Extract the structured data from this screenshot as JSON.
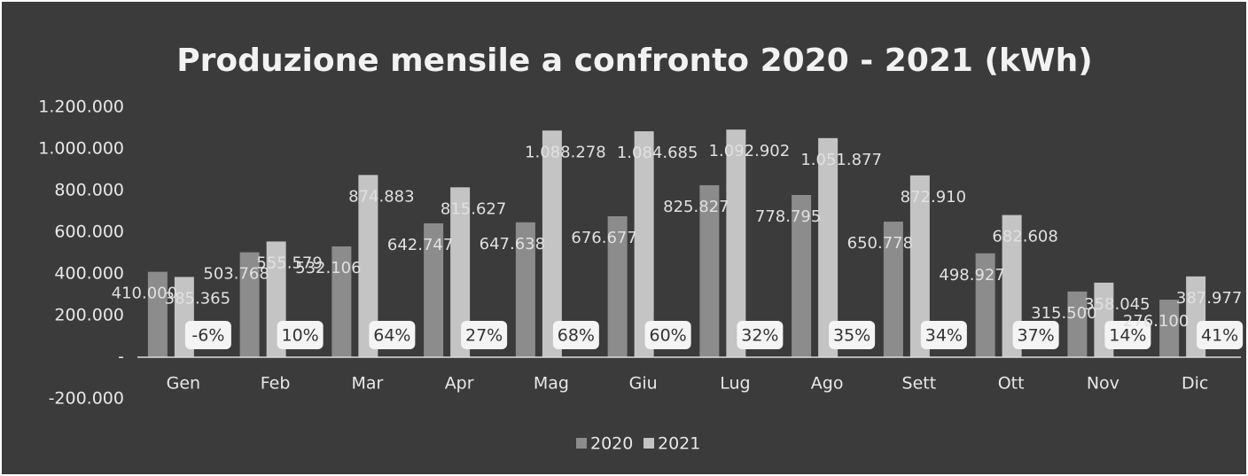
{
  "chart_data": {
    "type": "bar",
    "title": "Produzione mensile a confronto 2020 - 2021 (kWh)",
    "categories": [
      "Gen",
      "Feb",
      "Mar",
      "Apr",
      "Mag",
      "Giu",
      "Lug",
      "Ago",
      "Sett",
      "Ott",
      "Nov",
      "Dic"
    ],
    "series": [
      {
        "name": "2020",
        "color": "#8c8c8c",
        "values": [
          410000,
          503768,
          532106,
          642747,
          647638,
          676677,
          825827,
          778795,
          650778,
          498927,
          315500,
          276100
        ],
        "value_labels": [
          "410.000",
          "503.768",
          "532.106",
          "642.747",
          "647.638",
          "676.677",
          "825.827",
          "778.795",
          "650.778",
          "498.927",
          "315.500",
          "276.100"
        ]
      },
      {
        "name": "2021",
        "color": "#c4c4c4",
        "values": [
          385365,
          555579,
          874883,
          815627,
          1088278,
          1084685,
          1092902,
          1051877,
          872910,
          682608,
          358045,
          387977
        ],
        "value_labels": [
          "385.365",
          "555.579",
          "874.883",
          "815.627",
          "1.088.278",
          "1.084.685",
          "1.092.902",
          "1.051.877",
          "872.910",
          "682.608",
          "358.045",
          "387.977"
        ]
      }
    ],
    "annotations": [
      "-6%",
      "10%",
      "64%",
      "27%",
      "68%",
      "60%",
      "32%",
      "35%",
      "34%",
      "37%",
      "14%",
      "41%"
    ],
    "ylim": [
      -200000,
      1200000
    ],
    "yticks": [
      {
        "value": -200000,
        "label": "-200.000"
      },
      {
        "value": 0,
        "label": "-"
      },
      {
        "value": 200000,
        "label": "200.000"
      },
      {
        "value": 400000,
        "label": "400.000"
      },
      {
        "value": 600000,
        "label": "600.000"
      },
      {
        "value": 800000,
        "label": "800.000"
      },
      {
        "value": 1000000,
        "label": "1.000.000"
      },
      {
        "value": 1200000,
        "label": "1.200.000"
      }
    ],
    "grid": false,
    "legend": "bottom"
  }
}
